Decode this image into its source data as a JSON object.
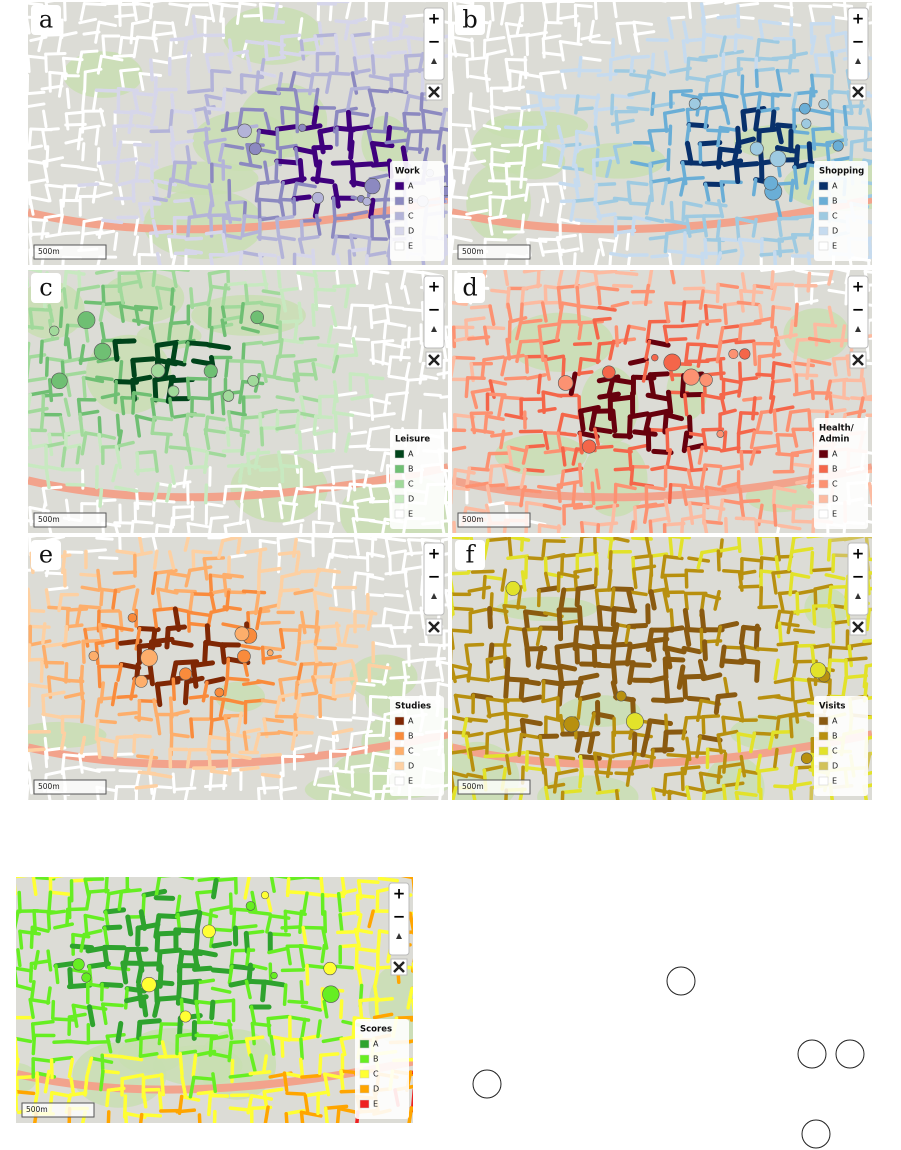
{
  "controls": {
    "zoom_in": "+",
    "zoom_out": "−"
  },
  "scale_label": "500m",
  "panels": [
    {
      "label": "a",
      "legend": {
        "title": [
          "Work"
        ],
        "items": [
          {
            "label": "A",
            "color": "#3f007d"
          },
          {
            "label": "B",
            "color": "#8c89c0"
          },
          {
            "label": "C",
            "color": "#b3b3d8"
          },
          {
            "label": "D",
            "color": "#d6d6ea"
          },
          {
            "label": "E",
            "color": "#ffffff"
          }
        ]
      }
    },
    {
      "label": "b",
      "legend": {
        "title": [
          "Shopping"
        ],
        "items": [
          {
            "label": "A",
            "color": "#08306b"
          },
          {
            "label": "B",
            "color": "#6aaed6"
          },
          {
            "label": "C",
            "color": "#9ecae1"
          },
          {
            "label": "D",
            "color": "#c6dbef"
          },
          {
            "label": "E",
            "color": "#ffffff"
          }
        ]
      }
    },
    {
      "label": "c",
      "legend": {
        "title": [
          "Leisure"
        ],
        "items": [
          {
            "label": "A",
            "color": "#00441b"
          },
          {
            "label": "B",
            "color": "#6fbf73"
          },
          {
            "label": "C",
            "color": "#a1d99b"
          },
          {
            "label": "D",
            "color": "#c7e9c0"
          },
          {
            "label": "E",
            "color": "#ffffff"
          }
        ]
      }
    },
    {
      "label": "d",
      "legend": {
        "title": [
          "Health/",
          "Admin"
        ],
        "items": [
          {
            "label": "A",
            "color": "#67000d"
          },
          {
            "label": "B",
            "color": "#f4664a"
          },
          {
            "label": "C",
            "color": "#fc9272"
          },
          {
            "label": "D",
            "color": "#fcbba1"
          },
          {
            "label": "E",
            "color": "#ffffff"
          }
        ]
      }
    },
    {
      "label": "e",
      "legend": {
        "title": [
          "Studies"
        ],
        "items": [
          {
            "label": "A",
            "color": "#7f2704"
          },
          {
            "label": "B",
            "color": "#f98b3c"
          },
          {
            "label": "C",
            "color": "#fdae6b"
          },
          {
            "label": "D",
            "color": "#fdd0a2"
          },
          {
            "label": "E",
            "color": "#ffffff"
          }
        ]
      }
    },
    {
      "label": "f",
      "legend": {
        "title": [
          "Visits"
        ],
        "items": [
          {
            "label": "A",
            "color": "#8a5a10"
          },
          {
            "label": "B",
            "color": "#b8900f"
          },
          {
            "label": "C",
            "color": "#e2e22a"
          },
          {
            "label": "D",
            "color": "#d2c259"
          },
          {
            "label": "E",
            "color": "#ffffff"
          }
        ]
      }
    }
  ],
  "scores_map": {
    "legend": {
      "title": [
        "Scores"
      ],
      "items": [
        {
          "label": "A",
          "color": "#2ea32e"
        },
        {
          "label": "B",
          "color": "#66ee22"
        },
        {
          "label": "C",
          "color": "#ffff33"
        },
        {
          "label": "D",
          "color": "#ffa500"
        },
        {
          "label": "E",
          "color": "#ee2020"
        }
      ]
    }
  }
}
